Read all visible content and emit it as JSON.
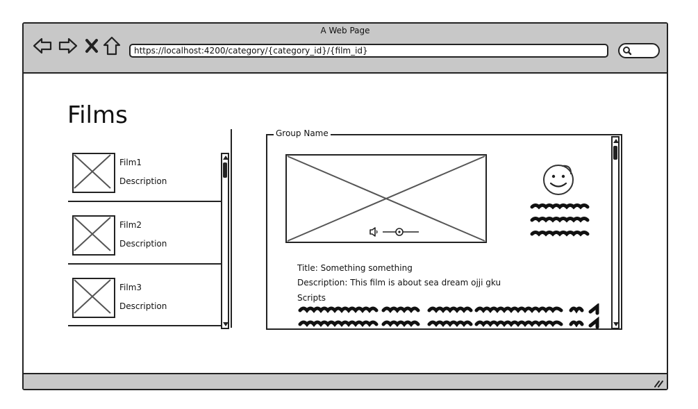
{
  "browser": {
    "title": "A Web Page",
    "url": "https://localhost:4200/category/{category_id}/{film_id}",
    "nav_icons": [
      "back-arrow-icon",
      "forward-arrow-icon",
      "close-icon",
      "home-icon"
    ],
    "search_icon": "search-icon"
  },
  "page": {
    "title": "Films"
  },
  "films": [
    {
      "name": "Film1",
      "description": "Description"
    },
    {
      "name": "Film2",
      "description": "Description"
    },
    {
      "name": "Film3",
      "description": "Description"
    }
  ],
  "group": {
    "legend": "Group Name",
    "film_title": "Title: Something something",
    "film_description": "Description: This film is about sea dream ojji gku",
    "scripts_label": "Scripts"
  },
  "colors": {
    "frame": "#222222",
    "chrome": "#c8c8c8",
    "placeholder_x": "#555555"
  }
}
